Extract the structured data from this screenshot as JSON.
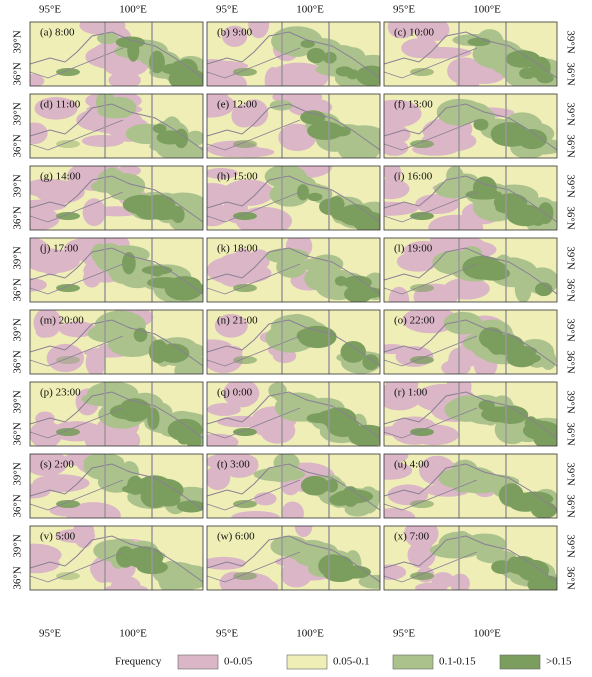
{
  "panels": [
    "(a) 8:00",
    "(b) 9:00",
    "(c) 10:00",
    "(d) 11:00",
    "(e) 12:00",
    "(f) 13:00",
    "(g) 14:00",
    "(h) 15:00",
    "(i) 16:00",
    "(j) 17:00",
    "(k) 18:00",
    "(l) 19:00",
    "(m) 20:00",
    "(n) 21:00",
    "(o) 22:00",
    "(p) 23:00",
    "(q) 0:00",
    "(r) 1:00",
    "(s) 2:00",
    "(t) 3:00",
    "(u) 4:00",
    "(v) 5:00",
    "(w) 6:00",
    "(x) 7:00"
  ],
  "lon_labels": [
    "95°E",
    "100°E"
  ],
  "lat_labels": [
    "39°N",
    "36°N"
  ],
  "legend": {
    "title": "Frequency",
    "items": [
      {
        "label": "0-0.05",
        "color": "#dbb6c6"
      },
      {
        "label": "0.05-0.1",
        "color": "#eeeeb6"
      },
      {
        "label": "0.1-0.15",
        "color": "#abc28c"
      },
      {
        "label": ">0.15",
        "color": "#7b9e5f"
      }
    ]
  }
}
